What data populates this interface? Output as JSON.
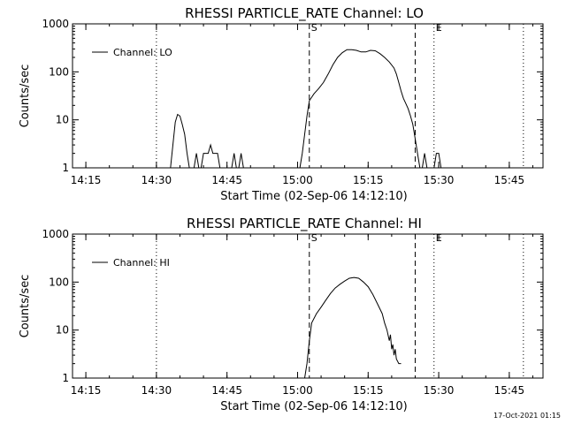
{
  "chart_data": [
    {
      "type": "line",
      "title": "RHESSI PARTICLE_RATE Channel: LO",
      "xlabel": "Start Time (02-Sep-06 14:12:10)",
      "ylabel": "Counts/sec",
      "y_scale": "log",
      "ylim": [
        1,
        1000
      ],
      "xlim": [
        "14:12:10",
        "15:52:10"
      ],
      "x_ticks": [
        "14:15",
        "14:30",
        "14:45",
        "15:00",
        "15:15",
        "15:30",
        "15:45"
      ],
      "y_ticks": [
        "1",
        "10",
        "100",
        "1000"
      ],
      "legend": {
        "entries": [
          "Channel: LO"
        ],
        "position": "top-left"
      },
      "markers": [
        {
          "label": "S",
          "time": "15:02:30",
          "style": "dashed"
        },
        {
          "label": "E",
          "time": "15:29:00",
          "style": "dotted"
        }
      ],
      "vertical_lines": [
        {
          "time": "14:30:00",
          "style": "dotted"
        },
        {
          "time": "15:25:00",
          "style": "dashed"
        },
        {
          "time": "15:48:00",
          "style": "dotted"
        }
      ],
      "series": [
        {
          "name": "Channel: LO",
          "segments": [
            [
              [
                "14:33:00",
                1
              ],
              [
                "14:33:30",
                3
              ],
              [
                "14:34:00",
                9
              ],
              [
                "14:34:30",
                13
              ],
              [
                "14:35:00",
                12
              ],
              [
                "14:35:30",
                8
              ],
              [
                "14:36:00",
                5
              ],
              [
                "14:36:30",
                2
              ],
              [
                "14:37:00",
                1
              ]
            ],
            [
              [
                "14:38:00",
                1
              ],
              [
                "14:38:30",
                2
              ],
              [
                "14:39:00",
                1
              ]
            ],
            [
              [
                "14:39:30",
                1
              ],
              [
                "14:40:00",
                2
              ],
              [
                "14:41:00",
                2
              ],
              [
                "14:41:30",
                3
              ],
              [
                "14:42:00",
                2
              ],
              [
                "14:43:00",
                2
              ],
              [
                "14:43:30",
                1
              ]
            ],
            [
              [
                "14:46:00",
                1
              ],
              [
                "14:46:30",
                2
              ],
              [
                "14:47:00",
                1
              ]
            ],
            [
              [
                "14:47:30",
                1
              ],
              [
                "14:48:00",
                2
              ],
              [
                "14:48:30",
                1
              ]
            ],
            [
              [
                "15:00:30",
                1
              ],
              [
                "15:01:00",
                2
              ],
              [
                "15:01:30",
                5
              ],
              [
                "15:02:00",
                12
              ],
              [
                "15:02:30",
                25
              ],
              [
                "15:03:30",
                35
              ],
              [
                "15:04:30",
                45
              ],
              [
                "15:05:30",
                60
              ],
              [
                "15:06:30",
                90
              ],
              [
                "15:07:30",
                140
              ],
              [
                "15:08:30",
                200
              ],
              [
                "15:09:30",
                250
              ],
              [
                "15:10:30",
                290
              ],
              [
                "15:11:30",
                290
              ],
              [
                "15:12:30",
                280
              ],
              [
                "15:13:30",
                260
              ],
              [
                "15:14:30",
                260
              ],
              [
                "15:15:30",
                280
              ],
              [
                "15:16:30",
                275
              ],
              [
                "15:17:30",
                240
              ],
              [
                "15:18:30",
                200
              ],
              [
                "15:19:30",
                160
              ],
              [
                "15:20:30",
                120
              ],
              [
                "15:21:00",
                90
              ],
              [
                "15:21:30",
                60
              ],
              [
                "15:22:00",
                40
              ],
              [
                "15:22:30",
                28
              ],
              [
                "15:23:00",
                22
              ],
              [
                "15:23:30",
                17
              ],
              [
                "15:24:00",
                12
              ],
              [
                "15:24:30",
                8
              ],
              [
                "15:25:00",
                4
              ],
              [
                "15:25:30",
                2
              ],
              [
                "15:26:00",
                1
              ]
            ],
            [
              [
                "15:26:30",
                1
              ],
              [
                "15:27:00",
                2
              ],
              [
                "15:27:30",
                1
              ]
            ],
            [
              [
                "15:29:00",
                1
              ],
              [
                "15:29:30",
                2
              ],
              [
                "15:30:00",
                2
              ],
              [
                "15:30:30",
                1
              ]
            ]
          ]
        }
      ]
    },
    {
      "type": "line",
      "title": "RHESSI PARTICLE_RATE Channel: HI",
      "xlabel": "Start Time (02-Sep-06 14:12:10)",
      "ylabel": "Counts/sec",
      "y_scale": "log",
      "ylim": [
        1,
        1000
      ],
      "xlim": [
        "14:12:10",
        "15:52:10"
      ],
      "x_ticks": [
        "14:15",
        "14:30",
        "14:45",
        "15:00",
        "15:15",
        "15:30",
        "15:45"
      ],
      "y_ticks": [
        "1",
        "10",
        "100",
        "1000"
      ],
      "legend": {
        "entries": [
          "Channel: HI"
        ],
        "position": "top-left"
      },
      "markers": [
        {
          "label": "S",
          "time": "15:02:30",
          "style": "dashed"
        },
        {
          "label": "E",
          "time": "15:29:00",
          "style": "dotted"
        }
      ],
      "vertical_lines": [
        {
          "time": "14:30:00",
          "style": "dotted"
        },
        {
          "time": "15:25:00",
          "style": "dashed"
        },
        {
          "time": "15:48:00",
          "style": "dotted"
        }
      ],
      "series": [
        {
          "name": "Channel: HI",
          "segments": [
            [
              [
                "15:01:30",
                1
              ],
              [
                "15:02:00",
                2
              ],
              [
                "15:02:30",
                6
              ],
              [
                "15:03:00",
                14
              ],
              [
                "15:04:00",
                22
              ],
              [
                "15:05:00",
                30
              ],
              [
                "15:06:00",
                42
              ],
              [
                "15:07:00",
                58
              ],
              [
                "15:08:00",
                75
              ],
              [
                "15:09:00",
                90
              ],
              [
                "15:10:00",
                105
              ],
              [
                "15:11:00",
                120
              ],
              [
                "15:12:00",
                125
              ],
              [
                "15:13:00",
                120
              ],
              [
                "15:14:00",
                100
              ],
              [
                "15:15:00",
                80
              ],
              [
                "15:16:00",
                55
              ],
              [
                "15:17:00",
                35
              ],
              [
                "15:18:00",
                22
              ],
              [
                "15:18:30",
                14
              ],
              [
                "15:19:00",
                10
              ],
              [
                "15:19:30",
                6
              ],
              [
                "15:19:45",
                8
              ],
              [
                "15:20:00",
                4
              ],
              [
                "15:20:15",
                5
              ],
              [
                "15:20:30",
                3
              ],
              [
                "15:20:45",
                4
              ],
              [
                "15:21:00",
                2.5
              ],
              [
                "15:21:30",
                2
              ],
              [
                "15:22:00",
                2
              ]
            ]
          ]
        }
      ]
    }
  ],
  "timestamp": "17-Oct-2021 01:15"
}
